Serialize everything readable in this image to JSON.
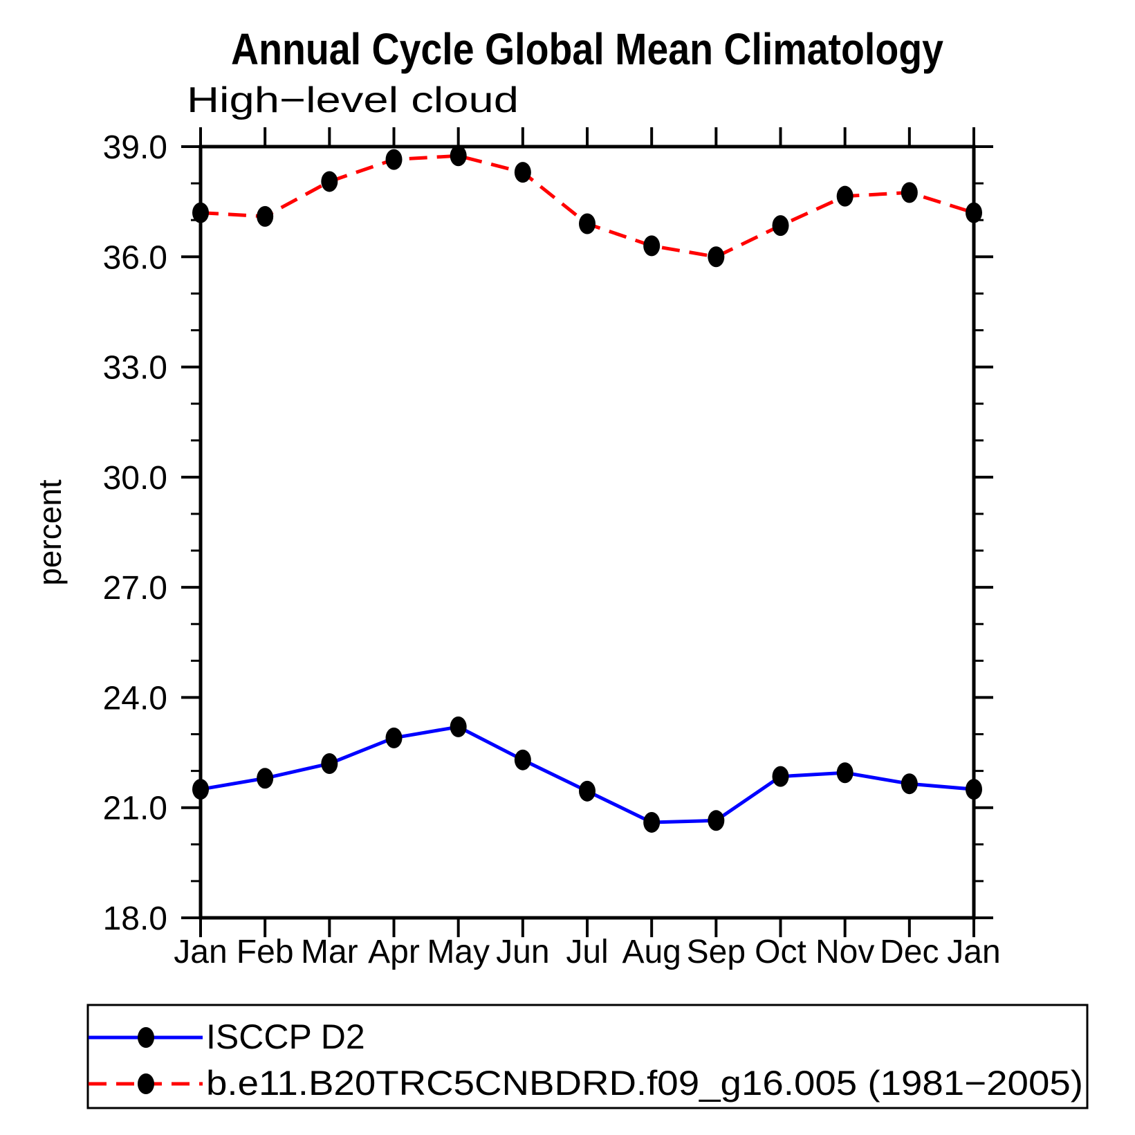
{
  "header": {
    "title": "Annual Cycle Global Mean Climatology",
    "subtitle": "High−level cloud"
  },
  "y_axis": {
    "label": "percent",
    "tick_labels": [
      "39.0",
      "36.0",
      "33.0",
      "30.0",
      "27.0",
      "24.0",
      "21.0",
      "18.0"
    ]
  },
  "x_axis": {
    "tick_labels": [
      "Jan",
      "Feb",
      "Mar",
      "Apr",
      "May",
      "Jun",
      "Jul",
      "Aug",
      "Sep",
      "Oct",
      "Nov",
      "Dec",
      "Jan"
    ]
  },
  "legend": {
    "entries": [
      {
        "label": "ISCCP D2",
        "line_style": "solid",
        "color": "#0000ff"
      },
      {
        "label": "b.e11.B20TRC5CNBDRD.f09_g16.005 (1981−2005)",
        "line_style": "dashed",
        "color": "#ff0000"
      }
    ]
  },
  "chart_data": {
    "type": "line",
    "title": "Annual Cycle Global Mean Climatology",
    "subtitle": "High−level cloud",
    "ylabel": "percent",
    "xlabel": "",
    "categories": [
      "Jan",
      "Feb",
      "Mar",
      "Apr",
      "May",
      "Jun",
      "Jul",
      "Aug",
      "Sep",
      "Oct",
      "Nov",
      "Dec",
      "Jan"
    ],
    "series": [
      {
        "name": "ISCCP D2",
        "style": "solid",
        "color": "#0000ff",
        "values": [
          21.5,
          21.8,
          22.2,
          22.9,
          23.2,
          22.3,
          21.45,
          20.6,
          20.65,
          21.85,
          21.95,
          21.65,
          21.5
        ]
      },
      {
        "name": "b.e11.B20TRC5CNBDRD.f09_g16.005 (1981−2005)",
        "style": "dashed",
        "color": "#ff0000",
        "values": [
          37.2,
          37.1,
          38.05,
          38.65,
          38.75,
          38.3,
          36.9,
          36.3,
          36.0,
          36.85,
          37.65,
          37.75,
          37.2
        ]
      }
    ],
    "ylim": [
      18.0,
      39.0
    ],
    "ytick_major": [
      39,
      36,
      33,
      30,
      27,
      24,
      21,
      18
    ],
    "ytick_minor_step": 1,
    "marker": "filled-circle",
    "marker_color": "#000000",
    "grid": false,
    "legend_position": "bottom-left-box"
  }
}
